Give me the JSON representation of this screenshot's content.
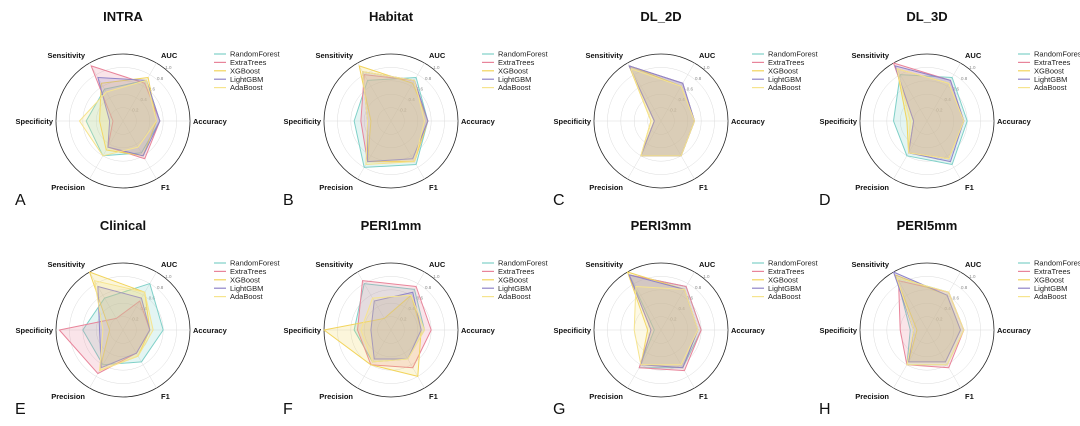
{
  "figure": {
    "axes": [
      "AUC",
      "Accuracy",
      "F1",
      "Precision",
      "Specificity",
      "Sensitivity"
    ],
    "rticks": [
      "0.2",
      "0.4",
      "0.6",
      "0.8",
      "1.0"
    ],
    "colors": {
      "RandomForest": "#7fd0c8",
      "ExtraTrees": "#e8849a",
      "XGBoost": "#f2d45c",
      "LightGBM": "#8f84c8",
      "AdaBoost": "#f6e48e"
    }
  },
  "chart_data": [
    {
      "type": "radar",
      "label": "A",
      "title": "INTRA",
      "axes": [
        "AUC",
        "Accuracy",
        "F1",
        "Precision",
        "Specificity",
        "Sensitivity"
      ],
      "rlim": [
        0,
        1
      ],
      "series": [
        {
          "name": "RandomForest",
          "values": [
            0.7,
            0.55,
            0.55,
            0.6,
            0.55,
            0.55
          ]
        },
        {
          "name": "ExtraTrees",
          "values": [
            0.65,
            0.55,
            0.65,
            0.45,
            0.15,
            0.95
          ]
        },
        {
          "name": "XGBoost",
          "values": [
            0.75,
            0.5,
            0.6,
            0.5,
            0.35,
            0.65
          ]
        },
        {
          "name": "LightGBM",
          "values": [
            0.7,
            0.55,
            0.6,
            0.45,
            0.2,
            0.75
          ]
        },
        {
          "name": "AdaBoost",
          "values": [
            0.7,
            0.5,
            0.45,
            0.6,
            0.65,
            0.5
          ]
        }
      ]
    },
    {
      "type": "radar",
      "label": "B",
      "title": "Habitat",
      "axes": [
        "AUC",
        "Accuracy",
        "F1",
        "Precision",
        "Specificity",
        "Sensitivity"
      ],
      "rlim": [
        0,
        1
      ],
      "series": [
        {
          "name": "RandomForest",
          "values": [
            0.75,
            0.55,
            0.75,
            0.8,
            0.55,
            0.7
          ]
        },
        {
          "name": "ExtraTrees",
          "values": [
            0.7,
            0.55,
            0.7,
            0.7,
            0.45,
            0.8
          ]
        },
        {
          "name": "XGBoost",
          "values": [
            0.65,
            0.55,
            0.7,
            0.7,
            0.3,
            0.95
          ]
        },
        {
          "name": "LightGBM",
          "values": [
            0.7,
            0.55,
            0.65,
            0.7,
            0.35,
            0.85
          ]
        },
        {
          "name": "AdaBoost",
          "values": [
            0.7,
            0.5,
            0.7,
            0.75,
            0.35,
            0.85
          ]
        }
      ]
    },
    {
      "type": "radar",
      "label": "C",
      "title": "DL_2D",
      "axes": [
        "AUC",
        "Accuracy",
        "F1",
        "Precision",
        "Specificity",
        "Sensitivity"
      ],
      "rlim": [
        0,
        1
      ],
      "series": [
        {
          "name": "RandomForest",
          "values": [
            0.65,
            0.5,
            0.6,
            0.6,
            0.1,
            0.95
          ]
        },
        {
          "name": "ExtraTrees",
          "values": [
            0.65,
            0.5,
            0.6,
            0.6,
            0.1,
            0.95
          ]
        },
        {
          "name": "XGBoost",
          "values": [
            0.6,
            0.5,
            0.6,
            0.6,
            0.15,
            0.95
          ]
        },
        {
          "name": "LightGBM",
          "values": [
            0.65,
            0.5,
            0.6,
            0.6,
            0.1,
            0.95
          ]
        },
        {
          "name": "AdaBoost",
          "values": [
            0.6,
            0.5,
            0.6,
            0.6,
            0.15,
            0.9
          ]
        }
      ]
    },
    {
      "type": "radar",
      "label": "D",
      "title": "DL_3D",
      "axes": [
        "AUC",
        "Accuracy",
        "F1",
        "Precision",
        "Specificity",
        "Sensitivity"
      ],
      "rlim": [
        0,
        1
      ],
      "series": [
        {
          "name": "RandomForest",
          "values": [
            0.75,
            0.6,
            0.75,
            0.6,
            0.5,
            0.8
          ]
        },
        {
          "name": "ExtraTrees",
          "values": [
            0.7,
            0.55,
            0.65,
            0.55,
            0.2,
            1.0
          ]
        },
        {
          "name": "XGBoost",
          "values": [
            0.65,
            0.55,
            0.65,
            0.55,
            0.3,
            0.9
          ]
        },
        {
          "name": "LightGBM",
          "values": [
            0.7,
            0.55,
            0.7,
            0.55,
            0.2,
            0.95
          ]
        },
        {
          "name": "AdaBoost",
          "values": [
            0.65,
            0.55,
            0.65,
            0.55,
            0.25,
            0.9
          ]
        }
      ]
    },
    {
      "type": "radar",
      "label": "E",
      "title": "Clinical",
      "axes": [
        "AUC",
        "Accuracy",
        "F1",
        "Precision",
        "Specificity",
        "Sensitivity"
      ],
      "rlim": [
        0,
        1
      ],
      "series": [
        {
          "name": "RandomForest",
          "values": [
            0.8,
            0.6,
            0.55,
            0.6,
            0.6,
            0.55
          ]
        },
        {
          "name": "ExtraTrees",
          "values": [
            0.5,
            0.4,
            0.4,
            0.75,
            0.95,
            0.2
          ]
        },
        {
          "name": "XGBoost",
          "values": [
            0.65,
            0.4,
            0.45,
            0.7,
            0.2,
            1.0
          ]
        },
        {
          "name": "LightGBM",
          "values": [
            0.55,
            0.4,
            0.4,
            0.65,
            0.35,
            0.75
          ]
        },
        {
          "name": "AdaBoost",
          "values": [
            0.65,
            0.45,
            0.45,
            0.7,
            0.3,
            0.85
          ]
        }
      ]
    },
    {
      "type": "radar",
      "label": "F",
      "title": "PERI1mm",
      "axes": [
        "AUC",
        "Accuracy",
        "F1",
        "Precision",
        "Specificity",
        "Sensitivity"
      ],
      "rlim": [
        0,
        1
      ],
      "series": [
        {
          "name": "RandomForest",
          "values": [
            0.7,
            0.5,
            0.5,
            0.55,
            0.55,
            0.8
          ]
        },
        {
          "name": "ExtraTrees",
          "values": [
            0.75,
            0.6,
            0.65,
            0.6,
            0.5,
            0.85
          ]
        },
        {
          "name": "XGBoost",
          "values": [
            0.6,
            0.45,
            0.8,
            0.6,
            1.0,
            0.2
          ]
        },
        {
          "name": "LightGBM",
          "values": [
            0.65,
            0.45,
            0.5,
            0.5,
            0.3,
            0.5
          ]
        },
        {
          "name": "AdaBoost",
          "values": [
            0.6,
            0.5,
            0.5,
            0.55,
            0.45,
            0.55
          ]
        }
      ]
    },
    {
      "type": "radar",
      "label": "G",
      "title": "PERI3mm",
      "axes": [
        "AUC",
        "Accuracy",
        "F1",
        "Precision",
        "Specificity",
        "Sensitivity"
      ],
      "rlim": [
        0,
        1
      ],
      "series": [
        {
          "name": "RandomForest",
          "values": [
            0.75,
            0.6,
            0.65,
            0.65,
            0.1,
            0.95
          ]
        },
        {
          "name": "ExtraTrees",
          "values": [
            0.75,
            0.6,
            0.7,
            0.65,
            0.15,
            0.95
          ]
        },
        {
          "name": "XGBoost",
          "values": [
            0.7,
            0.55,
            0.65,
            0.6,
            0.2,
            1.0
          ]
        },
        {
          "name": "LightGBM",
          "values": [
            0.7,
            0.55,
            0.65,
            0.6,
            0.15,
            0.95
          ]
        },
        {
          "name": "AdaBoost",
          "values": [
            0.7,
            0.55,
            0.6,
            0.6,
            0.4,
            0.75
          ]
        }
      ]
    },
    {
      "type": "radar",
      "label": "H",
      "title": "PERI5mm",
      "axes": [
        "AUC",
        "Accuracy",
        "F1",
        "Precision",
        "Specificity",
        "Sensitivity"
      ],
      "rlim": [
        0,
        1
      ],
      "series": [
        {
          "name": "RandomForest",
          "values": [
            0.65,
            0.55,
            0.6,
            0.6,
            0.25,
            0.9
          ]
        },
        {
          "name": "ExtraTrees",
          "values": [
            0.65,
            0.55,
            0.65,
            0.6,
            0.4,
            0.85
          ]
        },
        {
          "name": "XGBoost",
          "values": [
            0.6,
            0.5,
            0.55,
            0.55,
            0.15,
            0.95
          ]
        },
        {
          "name": "LightGBM",
          "values": [
            0.6,
            0.5,
            0.55,
            0.55,
            0.2,
            1.0
          ]
        },
        {
          "name": "AdaBoost",
          "values": [
            0.65,
            0.55,
            0.6,
            0.6,
            0.2,
            0.9
          ]
        }
      ]
    }
  ]
}
